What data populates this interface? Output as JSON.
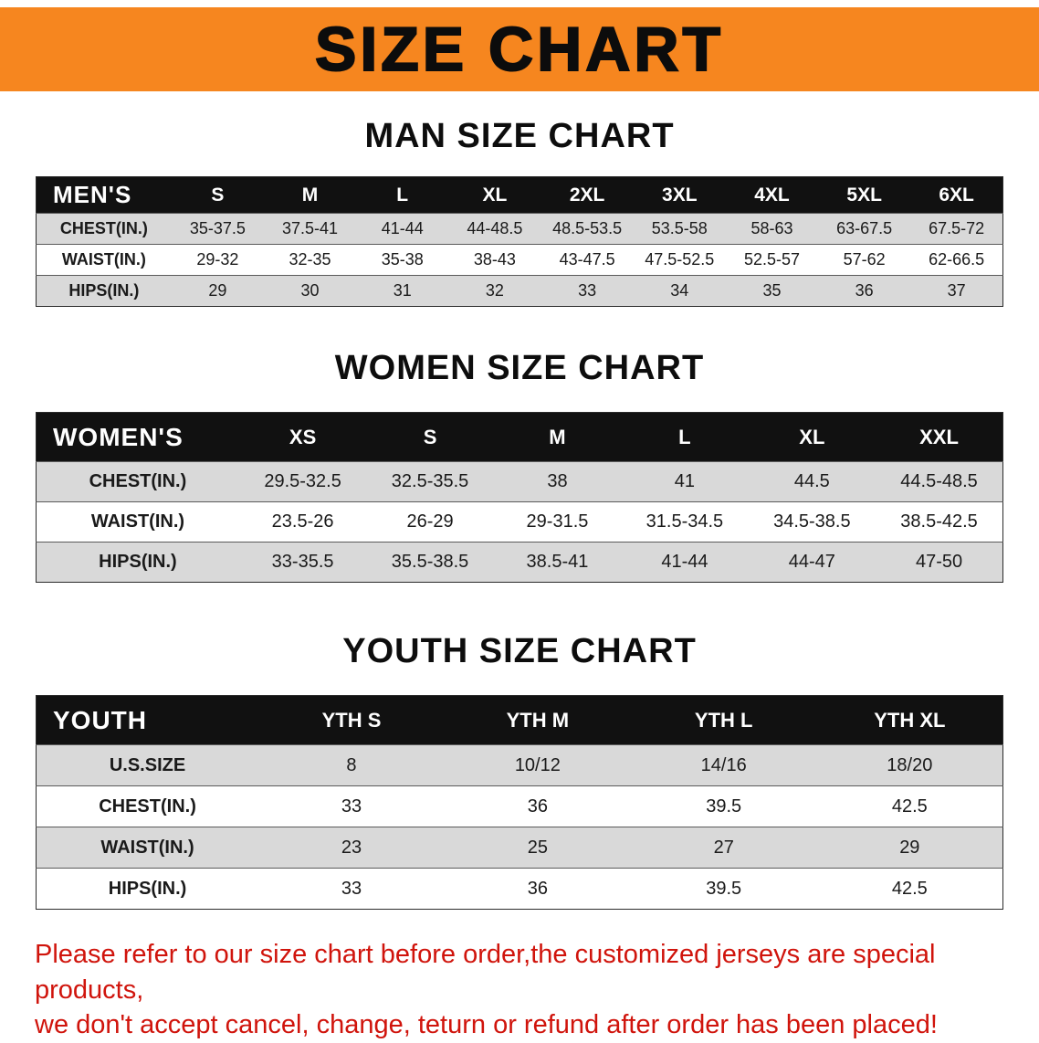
{
  "banner": {
    "title": "SIZE CHART"
  },
  "colors": {
    "banner_bg": "#f6861f",
    "header_bg": "#111111",
    "row_alt": "#d9d9d9",
    "note_red": "#d0140c"
  },
  "sections": {
    "men": {
      "heading": "MAN SIZE CHART",
      "table": {
        "header": [
          "MEN'S",
          "S",
          "M",
          "L",
          "XL",
          "2XL",
          "3XL",
          "4XL",
          "5XL",
          "6XL"
        ],
        "rows": [
          [
            "CHEST(IN.)",
            "35-37.5",
            "37.5-41",
            "41-44",
            "44-48.5",
            "48.5-53.5",
            "53.5-58",
            "58-63",
            "63-67.5",
            "67.5-72"
          ],
          [
            "WAIST(IN.)",
            "29-32",
            "32-35",
            "35-38",
            "38-43",
            "43-47.5",
            "47.5-52.5",
            "52.5-57",
            "57-62",
            "62-66.5"
          ],
          [
            "HIPS(IN.)",
            "29",
            "30",
            "31",
            "32",
            "33",
            "34",
            "35",
            "36",
            "37"
          ]
        ]
      }
    },
    "women": {
      "heading": "WOMEN SIZE CHART",
      "table": {
        "header": [
          "WOMEN'S",
          "XS",
          "S",
          "M",
          "L",
          "XL",
          "XXL"
        ],
        "rows": [
          [
            "CHEST(IN.)",
            "29.5-32.5",
            "32.5-35.5",
            "38",
            "41",
            "44.5",
            "44.5-48.5"
          ],
          [
            "WAIST(IN.)",
            "23.5-26",
            "26-29",
            "29-31.5",
            "31.5-34.5",
            "34.5-38.5",
            "38.5-42.5"
          ],
          [
            "HIPS(IN.)",
            "33-35.5",
            "35.5-38.5",
            "38.5-41",
            "41-44",
            "44-47",
            "47-50"
          ]
        ]
      }
    },
    "youth": {
      "heading": "YOUTH SIZE CHART",
      "table": {
        "header": [
          "YOUTH",
          "YTH S",
          "YTH M",
          "YTH L",
          "YTH XL"
        ],
        "rows": [
          [
            "U.S.SIZE",
            "8",
            "10/12",
            "14/16",
            "18/20"
          ],
          [
            "CHEST(IN.)",
            "33",
            "36",
            "39.5",
            "42.5"
          ],
          [
            "WAIST(IN.)",
            "23",
            "25",
            "27",
            "29"
          ],
          [
            "HIPS(IN.)",
            "33",
            "36",
            "39.5",
            "42.5"
          ]
        ]
      }
    }
  },
  "note": {
    "line1": "Please refer to our size chart before order,the customized jerseys are special products,",
    "line2": "we don't accept cancel, change, teturn or refund after order has been placed!"
  }
}
